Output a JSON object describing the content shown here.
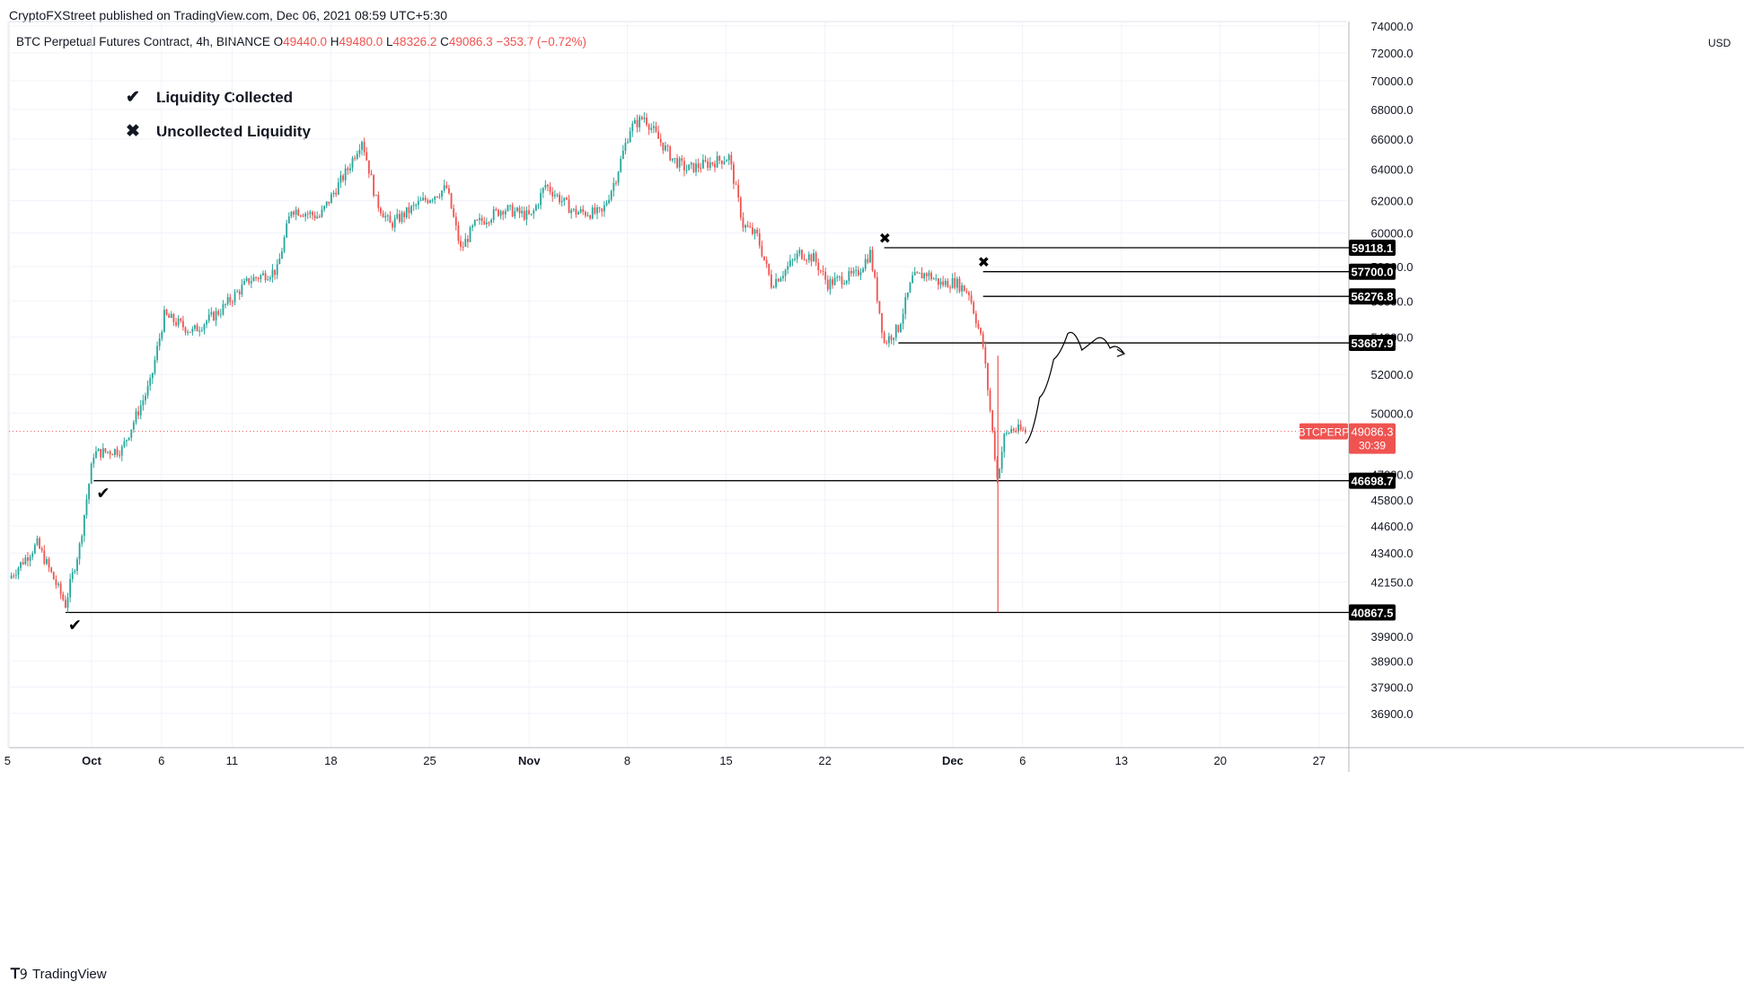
{
  "header": {
    "publisher_line": "CryptoFXStreet published on TradingView.com, Dec 06, 2021 08:59 UTC+5:30",
    "symbol": "BTC Perpetual Futures Contract, 4h, BINANCE",
    "ohlc": [
      {
        "k": "O",
        "v": "49440.0"
      },
      {
        "k": "H",
        "v": "49480.0"
      },
      {
        "k": "L",
        "v": "48326.2"
      },
      {
        "k": "C",
        "v": "49086.3"
      }
    ],
    "change": "−353.7 (−0.72%)"
  },
  "legend": {
    "collected_icon": "checkmark-icon",
    "collected_label": "Liquidity Collected",
    "uncollected_icon": "cross-icon",
    "uncollected_label": "Uncollected Liquidity"
  },
  "footer": {
    "brand": "TradingView",
    "logo_icon": "tradingview-logo-icon"
  },
  "colors": {
    "up": "#26a69a",
    "down": "#ef5350",
    "level_line": "#000000",
    "grid": "#f0f3fa",
    "price_line": "#ef5350"
  },
  "chart_data": {
    "type": "candlestick",
    "title": "BTC Perpetual Futures Contract, 4h, BINANCE",
    "currency_label": "USD",
    "y_axis": {
      "scale": "log",
      "range": [
        36000,
        74000
      ],
      "ticks": [
        "74000.0",
        "72000.0",
        "70000.0",
        "68000.0",
        "66000.0",
        "64000.0",
        "62000.0",
        "60000.0",
        "58000.0",
        "56000.0",
        "54000.0",
        "52000.0",
        "50000.0",
        "47000.0",
        "45800.0",
        "44600.0",
        "43400.0",
        "42150.0",
        "39900.0",
        "38900.0",
        "37900.0",
        "36900.0"
      ]
    },
    "x_axis": {
      "labels": [
        "5",
        "Oct",
        "6",
        "11",
        "18",
        "25",
        "Nov",
        "8",
        "15",
        "22",
        "Dec",
        "6",
        "13",
        "20",
        "27"
      ]
    },
    "price_path": [
      [
        "Sep 25",
        42300
      ],
      [
        "Sep 27",
        43800
      ],
      [
        "Sep 28",
        42500
      ],
      [
        "Sep 29",
        41200
      ],
      [
        "Sep 30",
        43700
      ],
      [
        "Oct 1",
        48000
      ],
      [
        "Oct 3",
        48200
      ],
      [
        "Oct 5",
        51500
      ],
      [
        "Oct 6",
        55200
      ],
      [
        "Oct 8",
        54300
      ],
      [
        "Oct 10",
        55500
      ],
      [
        "Oct 12",
        57200
      ],
      [
        "Oct 14",
        57800
      ],
      [
        "Oct 15",
        61500
      ],
      [
        "Oct 17",
        61000
      ],
      [
        "Oct 19",
        64000
      ],
      [
        "Oct 20",
        66000
      ],
      [
        "Oct 21",
        62000
      ],
      [
        "Oct 22",
        60500
      ],
      [
        "Oct 24",
        61800
      ],
      [
        "Oct 26",
        62800
      ],
      [
        "Oct 27",
        59000
      ],
      [
        "Oct 28",
        60500
      ],
      [
        "Oct 30",
        61500
      ],
      [
        "Nov 1",
        61000
      ],
      [
        "Nov 2",
        63000
      ],
      [
        "Nov 4",
        61300
      ],
      [
        "Nov 6",
        61200
      ],
      [
        "Nov 7",
        63500
      ],
      [
        "Nov 8",
        66700
      ],
      [
        "Nov 9",
        67500
      ],
      [
        "Nov 10",
        66000
      ],
      [
        "Nov 11",
        64700
      ],
      [
        "Nov 12",
        64000
      ],
      [
        "Nov 14",
        64500
      ],
      [
        "Nov 15",
        64800
      ],
      [
        "Nov 16",
        60500
      ],
      [
        "Nov 17",
        59800
      ],
      [
        "Nov 18",
        57000
      ],
      [
        "Nov 19",
        57800
      ],
      [
        "Nov 20",
        58800
      ],
      [
        "Nov 21",
        58500
      ],
      [
        "Nov 22",
        57000
      ],
      [
        "Nov 23",
        57300
      ],
      [
        "Nov 24",
        57500
      ],
      [
        "Nov 25",
        58800
      ],
      [
        "Nov 26",
        53700
      ],
      [
        "Nov 27",
        54500
      ],
      [
        "Nov 28",
        57300
      ],
      [
        "Nov 29",
        57600
      ],
      [
        "Nov 30",
        57000
      ],
      [
        "Dec 1",
        57100
      ],
      [
        "Dec 2",
        56500
      ],
      [
        "Dec 3",
        53500
      ],
      [
        "Dec 4",
        46800
      ],
      [
        "Dec 4b",
        48800
      ],
      [
        "Dec 5",
        49200
      ],
      [
        "Dec 6",
        49086.3
      ]
    ],
    "levels": [
      {
        "label": "59118.1",
        "value": 59118.1,
        "status": "uncollected",
        "from": "Nov 26"
      },
      {
        "label": "57700.0",
        "value": 57700.0,
        "status": "uncollected",
        "from": "Dec 3"
      },
      {
        "label": "56276.8",
        "value": 56276.8,
        "status": "uncollected",
        "from": "Dec 3"
      },
      {
        "label": "53687.9",
        "value": 53687.9,
        "status": "open",
        "from": "Nov 27"
      },
      {
        "label": "46698.7",
        "value": 46698.7,
        "status": "collected",
        "from": "Oct 1"
      },
      {
        "label": "40867.5",
        "value": 40867.5,
        "status": "collected",
        "from": "Sep 29"
      }
    ],
    "wick_low": 40867.5,
    "last_price": {
      "symbol": "BTCPERP",
      "value": "49086.3",
      "countdown": "30:39"
    },
    "projection_path": [
      [
        "Dec 6",
        48500
      ],
      [
        "Dec 7",
        50800
      ],
      [
        "Dec 8",
        52800
      ],
      [
        "Dec 9",
        54200
      ],
      [
        "Dec 10",
        53300
      ],
      [
        "Dec 11",
        53900
      ],
      [
        "Dec 12",
        53400
      ],
      [
        "Dec 13",
        53100
      ]
    ]
  }
}
